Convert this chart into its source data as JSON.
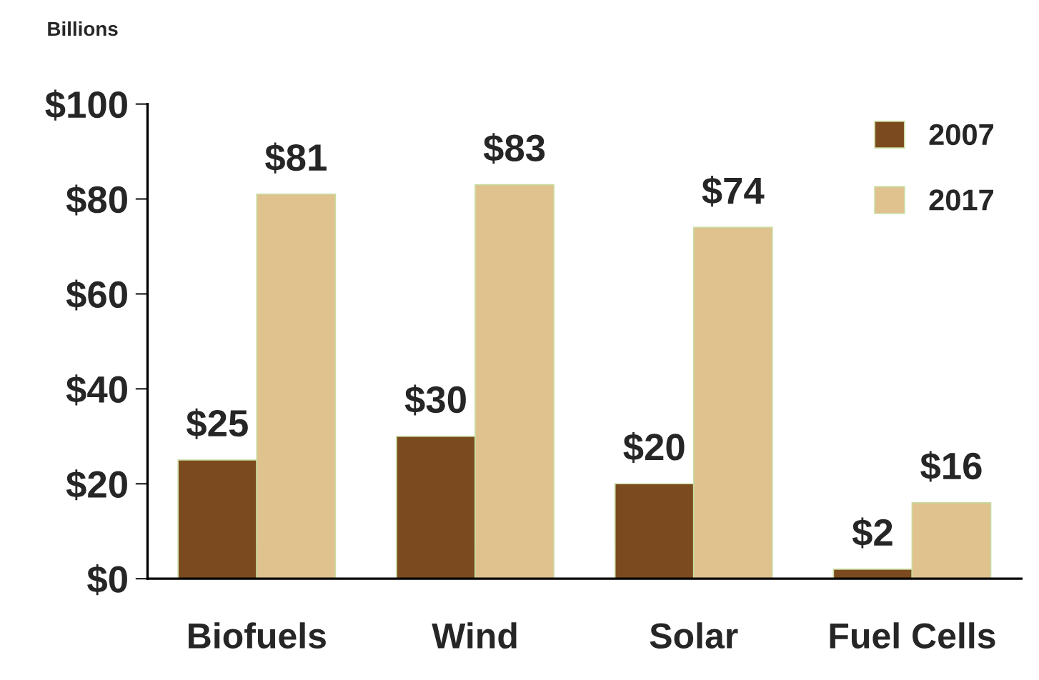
{
  "chart_data": {
    "type": "bar",
    "ylabel": "Billions",
    "categories": [
      "Biofuels",
      "Wind",
      "Solar",
      "Fuel Cells"
    ],
    "series": [
      {
        "name": "2007",
        "color": "#7b4a1e",
        "values": [
          25,
          30,
          20,
          2
        ],
        "value_labels": [
          "$25",
          "$30",
          "$20",
          "$2"
        ]
      },
      {
        "name": "2017",
        "color": "#dfc28e",
        "values": [
          81,
          83,
          74,
          16
        ],
        "value_labels": [
          "$81",
          "$83",
          "$74",
          "$16"
        ]
      }
    ],
    "ylim": [
      0,
      100
    ],
    "yticks": [
      {
        "value": 0,
        "label": "$0"
      },
      {
        "value": 20,
        "label": "$20"
      },
      {
        "value": 40,
        "label": "$40"
      },
      {
        "value": 60,
        "label": "$60"
      },
      {
        "value": 80,
        "label": "$80"
      },
      {
        "value": 100,
        "label": "$100"
      }
    ],
    "grid": false,
    "legend": "top right"
  }
}
